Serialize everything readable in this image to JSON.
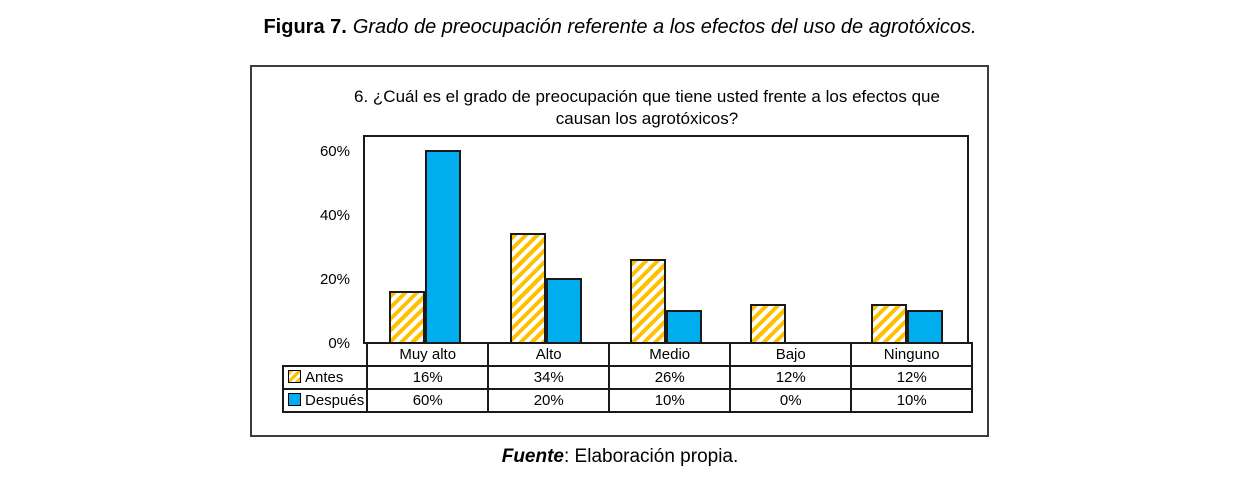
{
  "figure": {
    "label": "Figura 7.",
    "title": "Grado de preocupación referente a los efectos del uso de agrotóxicos."
  },
  "chart_data": {
    "type": "bar",
    "title_lines": [
      "6. ¿Cuál es el grado de preocupación que tiene usted frente a los efectos que",
      "causan los agrotóxicos?"
    ],
    "categories": [
      "Muy alto",
      "Alto",
      "Medio",
      "Bajo",
      "Ninguno"
    ],
    "series": [
      {
        "name": "Antes",
        "values": [
          16,
          34,
          26,
          12,
          12
        ],
        "color": "#FFC000",
        "pattern": "hatch"
      },
      {
        "name": "Después",
        "values": [
          60,
          20,
          10,
          0,
          10
        ],
        "color": "#00AEEF",
        "pattern": "solid"
      }
    ],
    "value_suffix": "%",
    "y_ticks": [
      "0%",
      "20%",
      "40%",
      "60%"
    ],
    "y_tick_step": 20,
    "ylim": [
      0,
      65
    ],
    "grid": false,
    "legend_position": "table-left",
    "bar_border_color": "#1a1a1a"
  },
  "source": {
    "label": "Fuente",
    "text": ": Elaboración propia."
  }
}
